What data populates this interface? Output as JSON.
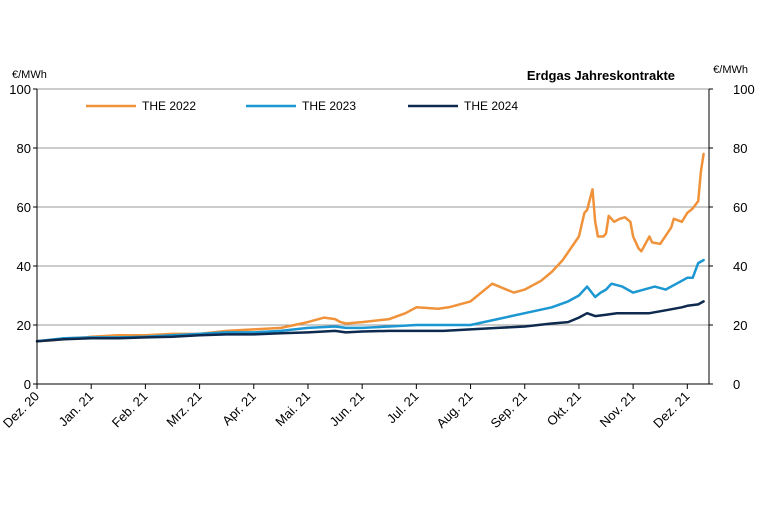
{
  "chart_data": {
    "type": "line",
    "title": "Erdgas Jahreskontrakte",
    "ylabel_left": "€/MWh",
    "ylabel_right": "€/MWh",
    "ylim": [
      0,
      100
    ],
    "yticks": [
      0,
      20,
      40,
      60,
      80,
      100
    ],
    "grid": "horizontal",
    "legend_position": "top-left",
    "xlim": [
      0,
      12.4
    ],
    "x_ticks": [
      "Dez. 20",
      "Jan. 21",
      "Feb. 21",
      "Mrz. 21",
      "Apr. 21",
      "Mai. 21",
      "Jun. 21",
      "Jul. 21",
      "Aug. 21",
      "Sep. 21",
      "Okt. 21",
      "Nov. 21",
      "Dez. 21"
    ],
    "series": [
      {
        "name": "THE 2022",
        "color": "#f0923a",
        "x": [
          0,
          0.3,
          0.6,
          0.9,
          1.0,
          1.5,
          2.0,
          2.5,
          3.0,
          3.5,
          4.0,
          4.5,
          5.0,
          5.3,
          5.5,
          5.6,
          5.7,
          6.0,
          6.5,
          6.8,
          7.0,
          7.4,
          7.6,
          8.0,
          8.4,
          8.8,
          9.0,
          9.3,
          9.5,
          9.7,
          10.0,
          10.1,
          10.15,
          10.25,
          10.3,
          10.35,
          10.45,
          10.5,
          10.55,
          10.65,
          10.75,
          10.85,
          10.95,
          11.0,
          11.1,
          11.15,
          11.3,
          11.35,
          11.5,
          11.7,
          11.75,
          11.9,
          12.0,
          12.1,
          12.2,
          12.25,
          12.3
        ],
        "y": [
          14.5,
          14.8,
          15.5,
          15.8,
          16,
          16.5,
          16.5,
          17,
          17,
          18,
          18.5,
          19,
          21,
          22.5,
          22,
          21,
          20.5,
          21,
          22,
          24,
          26,
          25.5,
          26,
          28,
          34,
          31,
          32,
          35,
          38,
          42,
          50,
          58,
          59,
          66,
          55,
          50,
          50,
          51,
          57,
          55,
          56,
          56.5,
          55,
          50,
          46,
          45,
          50,
          48,
          47.5,
          53,
          56,
          55,
          58,
          59.5,
          62,
          72,
          78
        ]
      },
      {
        "name": "THE 2023",
        "color": "#1c97d2",
        "x": [
          0,
          0.5,
          1.0,
          1.5,
          2.0,
          2.5,
          3.0,
          3.5,
          4.0,
          4.5,
          5.0,
          5.5,
          5.7,
          6.0,
          6.5,
          7.0,
          7.5,
          8.0,
          8.5,
          9.0,
          9.5,
          9.8,
          10.0,
          10.15,
          10.3,
          10.4,
          10.5,
          10.6,
          10.8,
          11.0,
          11.2,
          11.4,
          11.6,
          11.8,
          12.0,
          12.1,
          12.2,
          12.3
        ],
        "y": [
          14.5,
          15.5,
          15.8,
          15.8,
          16,
          16.5,
          17,
          17.5,
          17.5,
          18,
          19,
          19.5,
          19,
          19,
          19.5,
          20,
          20,
          20,
          22,
          24,
          26,
          28,
          30,
          33,
          29.5,
          31,
          32,
          34,
          33,
          31,
          32,
          33,
          32,
          34,
          36,
          36,
          41,
          42
        ]
      },
      {
        "name": "THE 2024",
        "color": "#0e2a4e",
        "x": [
          0,
          0.5,
          1.0,
          1.5,
          2.0,
          2.5,
          3.0,
          3.5,
          4.0,
          4.5,
          5.0,
          5.5,
          5.7,
          6.0,
          6.5,
          7.0,
          7.5,
          8.0,
          8.5,
          9.0,
          9.5,
          9.8,
          10.0,
          10.15,
          10.3,
          10.5,
          10.7,
          11.0,
          11.3,
          11.6,
          11.9,
          12.0,
          12.2,
          12.3
        ],
        "y": [
          14.5,
          15.2,
          15.5,
          15.5,
          15.8,
          16,
          16.5,
          16.8,
          16.8,
          17.2,
          17.5,
          18,
          17.5,
          17.8,
          18,
          18,
          18,
          18.5,
          19,
          19.5,
          20.5,
          21,
          22.5,
          24,
          23,
          23.5,
          24,
          24,
          24,
          25,
          26,
          26.5,
          27,
          28
        ]
      }
    ]
  }
}
